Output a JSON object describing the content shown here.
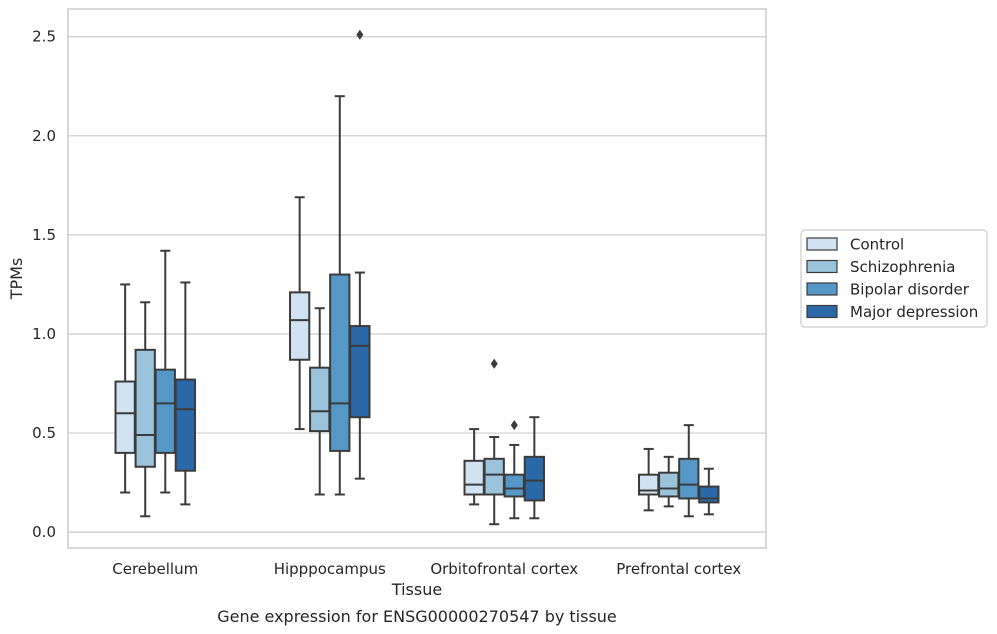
{
  "chart_data": {
    "type": "box",
    "xlabel": "Tissue",
    "ylabel": "TPMs",
    "caption": "Gene expression for ENSG00000270547 by tissue",
    "ylim": [
      -0.08,
      2.64
    ],
    "yticks": [
      0.0,
      0.5,
      1.0,
      1.5,
      2.0,
      2.5
    ],
    "ytick_labels": [
      "0.0",
      "0.5",
      "1.0",
      "1.5",
      "2.0",
      "2.5"
    ],
    "grid": "horizontal",
    "legend_position": "right",
    "categories": [
      "Cerebellum",
      "Hipppocampus",
      "Orbitofrontal cortex",
      "Prefrontal cortex"
    ],
    "series": [
      {
        "name": "Control",
        "color": "#d1e2f2",
        "boxes": [
          {
            "whisker_low": 0.2,
            "q1": 0.4,
            "median": 0.6,
            "q3": 0.76,
            "whisker_high": 1.25,
            "outliers": []
          },
          {
            "whisker_low": 0.52,
            "q1": 0.87,
            "median": 1.07,
            "q3": 1.21,
            "whisker_high": 1.69,
            "outliers": []
          },
          {
            "whisker_low": 0.14,
            "q1": 0.19,
            "median": 0.24,
            "q3": 0.36,
            "whisker_high": 0.52,
            "outliers": []
          },
          {
            "whisker_low": 0.11,
            "q1": 0.19,
            "median": 0.21,
            "q3": 0.29,
            "whisker_high": 0.42,
            "outliers": []
          }
        ]
      },
      {
        "name": "Schizophrenia",
        "color": "#9bc4dc",
        "boxes": [
          {
            "whisker_low": 0.08,
            "q1": 0.33,
            "median": 0.49,
            "q3": 0.92,
            "whisker_high": 1.16,
            "outliers": []
          },
          {
            "whisker_low": 0.19,
            "q1": 0.51,
            "median": 0.61,
            "q3": 0.83,
            "whisker_high": 1.13,
            "outliers": []
          },
          {
            "whisker_low": 0.04,
            "q1": 0.19,
            "median": 0.29,
            "q3": 0.37,
            "whisker_high": 0.48,
            "outliers": [
              0.85
            ]
          },
          {
            "whisker_low": 0.13,
            "q1": 0.18,
            "median": 0.22,
            "q3": 0.3,
            "whisker_high": 0.38,
            "outliers": []
          }
        ]
      },
      {
        "name": "Bipolar disorder",
        "color": "#5598c8",
        "boxes": [
          {
            "whisker_low": 0.2,
            "q1": 0.4,
            "median": 0.65,
            "q3": 0.82,
            "whisker_high": 1.42,
            "outliers": []
          },
          {
            "whisker_low": 0.19,
            "q1": 0.41,
            "median": 0.65,
            "q3": 1.3,
            "whisker_high": 2.2,
            "outliers": []
          },
          {
            "whisker_low": 0.07,
            "q1": 0.18,
            "median": 0.22,
            "q3": 0.29,
            "whisker_high": 0.44,
            "outliers": [
              0.54
            ]
          },
          {
            "whisker_low": 0.08,
            "q1": 0.17,
            "median": 0.24,
            "q3": 0.37,
            "whisker_high": 0.54,
            "outliers": []
          }
        ]
      },
      {
        "name": "Major depression",
        "color": "#2a68a8",
        "boxes": [
          {
            "whisker_low": 0.14,
            "q1": 0.31,
            "median": 0.62,
            "q3": 0.77,
            "whisker_high": 1.26,
            "outliers": []
          },
          {
            "whisker_low": 0.27,
            "q1": 0.58,
            "median": 0.94,
            "q3": 1.04,
            "whisker_high": 1.31,
            "outliers": [
              2.51
            ]
          },
          {
            "whisker_low": 0.07,
            "q1": 0.16,
            "median": 0.26,
            "q3": 0.38,
            "whisker_high": 0.58,
            "outliers": []
          },
          {
            "whisker_low": 0.09,
            "q1": 0.15,
            "median": 0.17,
            "q3": 0.23,
            "whisker_high": 0.32,
            "outliers": []
          }
        ]
      }
    ],
    "colors": {
      "box_edge": "#3b3b3b",
      "grid": "#cccccc",
      "frame": "#cccccc",
      "text": "#262626"
    }
  }
}
